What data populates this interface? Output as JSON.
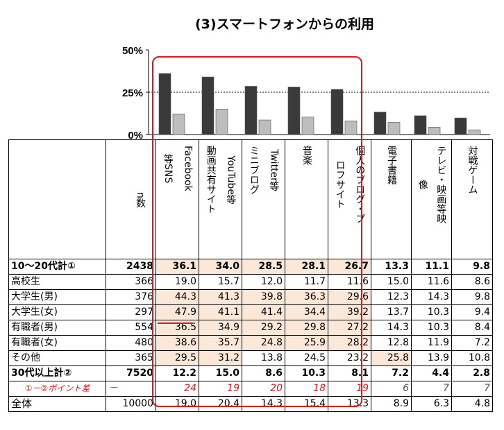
{
  "chart_data": {
    "type": "bar",
    "title": "(3)スマートフォンからの利用",
    "yticks": [
      "50%",
      "25%",
      "0%"
    ],
    "ylim": [
      0,
      50
    ],
    "categories": [
      "Facebook等SNS",
      "YouTube等動画共有サイト",
      "Twitter等ミニブログ",
      "音楽",
      "個人のブログ・プロフサイト",
      "電子書籍",
      "テレビ・映画等映像",
      "対戦ゲーム"
    ],
    "series": [
      {
        "values": [
          36.1,
          34.0,
          28.5,
          28.1,
          26.7,
          13.3,
          11.1,
          9.8
        ],
        "color": "#3a3a3a"
      },
      {
        "values": [
          12.2,
          15.0,
          8.6,
          10.3,
          8.1,
          7.2,
          4.4,
          2.8
        ],
        "color": "#bdbdbd"
      }
    ],
    "reference_line": 25
  },
  "table": {
    "n_header": "n数",
    "col_headers": [
      {
        "lines": [
          "Facebook",
          "等SNS"
        ]
      },
      {
        "lines": [
          "YouTube等",
          "動画共有サイト"
        ]
      },
      {
        "lines": [
          "Twitter等",
          "ミニブログ"
        ]
      },
      {
        "lines": [
          "音楽"
        ]
      },
      {
        "lines": [
          "個人のブログ・プ",
          "ロフサイト"
        ]
      },
      {
        "lines": [
          "電子書籍"
        ]
      },
      {
        "lines": [
          "テレビ・映画等映",
          "像"
        ]
      },
      {
        "lines": [
          "対戦ゲーム"
        ]
      }
    ],
    "rows": [
      {
        "label": "10～20代計①",
        "n": "2438",
        "values": [
          "36.1",
          "34.0",
          "28.5",
          "28.1",
          "26.7",
          "13.3",
          "11.1",
          "9.8"
        ],
        "style": "bold",
        "hl": [
          0,
          1,
          2,
          3,
          4
        ]
      },
      {
        "label": "高校生",
        "n": "366",
        "values": [
          "19.0",
          "15.7",
          "12.0",
          "11.7",
          "11.6",
          "15.0",
          "11.6",
          "8.6"
        ],
        "style": "sub",
        "hl": []
      },
      {
        "label": "大学生(男)",
        "n": "376",
        "values": [
          "44.3",
          "41.3",
          "39.8",
          "36.3",
          "29.6",
          "12.3",
          "14.3",
          "9.8"
        ],
        "style": "sub",
        "hl": [
          0,
          1,
          2,
          3,
          4
        ]
      },
      {
        "label": "大学生(女)",
        "n": "297",
        "values": [
          "47.9",
          "41.1",
          "41.4",
          "34.4",
          "39.2",
          "13.7",
          "10.3",
          "9.4"
        ],
        "style": "sub",
        "hl": [
          0,
          1,
          2,
          3,
          4
        ]
      },
      {
        "label": "有職者(男)",
        "n": "554",
        "values": [
          "36.5",
          "34.9",
          "29.2",
          "29.8",
          "27.2",
          "14.3",
          "10.3",
          "8.4"
        ],
        "style": "sub",
        "hl": [
          0,
          1,
          2,
          3,
          4
        ]
      },
      {
        "label": "有職者(女)",
        "n": "480",
        "values": [
          "38.6",
          "35.7",
          "24.8",
          "25.9",
          "28.2",
          "12.8",
          "11.9",
          "7.2"
        ],
        "style": "sub",
        "hl": [
          0,
          1,
          2,
          3,
          4
        ]
      },
      {
        "label": "その他",
        "n": "365",
        "values": [
          "29.5",
          "31.2",
          "13.8",
          "24.5",
          "23.2",
          "25.8",
          "13.9",
          "10.8"
        ],
        "style": "sub",
        "hl": [
          0,
          1,
          5
        ]
      },
      {
        "label": "30代以上計②",
        "n": "7520",
        "values": [
          "12.2",
          "15.0",
          "8.6",
          "10.3",
          "8.1",
          "7.2",
          "4.4",
          "2.8"
        ],
        "style": "bold",
        "hl": []
      },
      {
        "label": "①ー②ポイント差",
        "n": "－",
        "values": [
          "24",
          "19",
          "20",
          "18",
          "19",
          "6",
          "7",
          "7"
        ],
        "style": "diff",
        "hl": []
      },
      {
        "label": "全体",
        "n": "10000",
        "values": [
          "19.0",
          "20.4",
          "14.3",
          "15.4",
          "13.3",
          "8.9",
          "6.3",
          "4.8"
        ],
        "style": "total",
        "hl": []
      }
    ]
  }
}
